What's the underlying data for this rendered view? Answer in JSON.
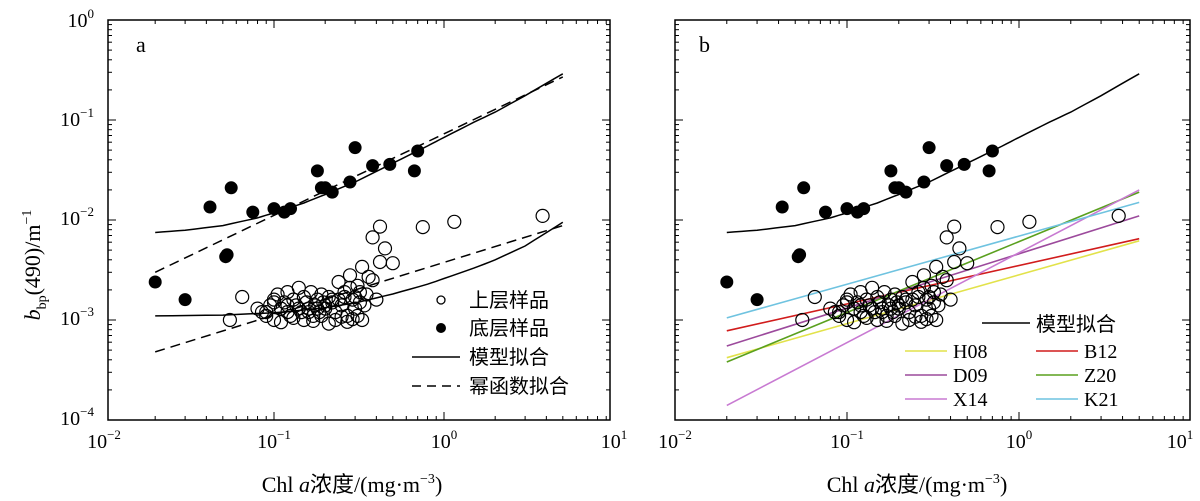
{
  "figure": {
    "ylabel": {
      "main": "b",
      "sub": "bp",
      "rest": "(490)/m",
      "sup": "−1"
    },
    "xlabel": {
      "prefix": "Chl ",
      "italic": "a",
      "suffix": "浓度/(mg·m",
      "sup": "−3",
      "close": ")"
    }
  },
  "chart_data": [
    {
      "panel": "a",
      "type": "scatter",
      "xscale": "log",
      "yscale": "log",
      "xlim": [
        0.01,
        10
      ],
      "ylim": [
        0.0001,
        1
      ],
      "xticks": [
        {
          "base": "10",
          "exp": "−2"
        },
        {
          "base": "10",
          "exp": "−1"
        },
        {
          "base": "10",
          "exp": "0"
        },
        {
          "base": "10",
          "exp": "1"
        }
      ],
      "yticks": [
        {
          "base": "10",
          "exp": "−4"
        },
        {
          "base": "10",
          "exp": "−3"
        },
        {
          "base": "10",
          "exp": "−2"
        },
        {
          "base": "10",
          "exp": "−1"
        },
        {
          "base": "10",
          "exp": "0"
        }
      ],
      "legend": {
        "placement": "bottom-right",
        "entries": [
          {
            "label": "上层样品",
            "marker": "open-circle"
          },
          {
            "label": "底层样品",
            "marker": "filled-circle"
          },
          {
            "label": "模型拟合",
            "line": "solid"
          },
          {
            "label": "幂函数拟合",
            "line": "dashed"
          }
        ]
      }
    },
    {
      "panel": "b",
      "type": "scatter",
      "xscale": "log",
      "yscale": "log",
      "xlim": [
        0.01,
        10
      ],
      "ylim": [
        0.0001,
        1
      ],
      "xticks": [
        {
          "base": "10",
          "exp": "−2"
        },
        {
          "base": "10",
          "exp": "−1"
        },
        {
          "base": "10",
          "exp": "0"
        },
        {
          "base": "10",
          "exp": "1"
        }
      ],
      "legend": {
        "placement": "bottom-right",
        "model_label": "模型拟合",
        "entries": [
          {
            "label": "H08",
            "color": "#e2e24a"
          },
          {
            "label": "B12",
            "color": "#d11c1c"
          },
          {
            "label": "D09",
            "color": "#9c4a9c"
          },
          {
            "label": "Z20",
            "color": "#5aa01e"
          },
          {
            "label": "X14",
            "color": "#c87ad2"
          },
          {
            "label": "K21",
            "color": "#6fc3e0"
          }
        ]
      },
      "lines": [
        {
          "name": "H08",
          "color": "#e2e24a",
          "x": [
            0.02,
            5
          ],
          "y": [
            0.00042,
            0.0062
          ]
        },
        {
          "name": "B12",
          "color": "#d11c1c",
          "x": [
            0.02,
            5
          ],
          "y": [
            0.00078,
            0.0065
          ]
        },
        {
          "name": "D09",
          "color": "#9c4a9c",
          "x": [
            0.02,
            5
          ],
          "y": [
            0.00055,
            0.011
          ]
        },
        {
          "name": "Z20",
          "color": "#5aa01e",
          "x": [
            0.02,
            5
          ],
          "y": [
            0.00038,
            0.019
          ]
        },
        {
          "name": "X14",
          "color": "#c87ad2",
          "x": [
            0.02,
            5
          ],
          "y": [
            0.00014,
            0.02
          ]
        },
        {
          "name": "K21",
          "color": "#6fc3e0",
          "x": [
            0.02,
            5
          ],
          "y": [
            0.00105,
            0.015
          ]
        }
      ]
    }
  ],
  "series": {
    "upper_samples": {
      "x": [
        0.065,
        0.08,
        0.085,
        0.09,
        0.095,
        0.1,
        0.1,
        0.105,
        0.11,
        0.115,
        0.12,
        0.12,
        0.125,
        0.13,
        0.135,
        0.14,
        0.145,
        0.15,
        0.155,
        0.16,
        0.165,
        0.17,
        0.175,
        0.18,
        0.185,
        0.19,
        0.195,
        0.2,
        0.21,
        0.22,
        0.23,
        0.24,
        0.25,
        0.26,
        0.27,
        0.28,
        0.29,
        0.3,
        0.31,
        0.32,
        0.33,
        0.35,
        0.36,
        0.38,
        0.4,
        0.42,
        0.45,
        0.5,
        0.11,
        0.13,
        0.15,
        0.17,
        0.19,
        0.21,
        0.23,
        0.25,
        0.27,
        0.29,
        0.31,
        0.33,
        0.09,
        0.1,
        0.12,
        0.14,
        0.16,
        0.18,
        0.2,
        0.22,
        0.24,
        0.26,
        0.28,
        0.3,
        0.32,
        0.34,
        0.38,
        0.42,
        0.75,
        1.15,
        3.8,
        0.055
      ],
      "y": [
        0.0017,
        0.0013,
        0.0012,
        0.0011,
        0.0014,
        0.0016,
        0.001,
        0.0018,
        0.0013,
        0.0015,
        0.0012,
        0.0019,
        0.0011,
        0.0016,
        0.0014,
        0.0021,
        0.0012,
        0.0017,
        0.0015,
        0.0013,
        0.0019,
        0.0011,
        0.0014,
        0.0016,
        0.0012,
        0.0018,
        0.0015,
        0.0013,
        0.0017,
        0.0016,
        0.0012,
        0.0024,
        0.0014,
        0.0019,
        0.0011,
        0.0028,
        0.0016,
        0.0013,
        0.0022,
        0.0015,
        0.0034,
        0.0018,
        0.0027,
        0.0025,
        0.0016,
        0.0038,
        0.0052,
        0.0037,
        0.00095,
        0.00105,
        0.001,
        0.00098,
        0.0011,
        0.00092,
        0.001,
        0.00108,
        0.00096,
        0.00102,
        0.0011,
        0.001,
        0.0012,
        0.0015,
        0.0014,
        0.0013,
        0.0012,
        0.0013,
        0.0014,
        0.0015,
        0.0016,
        0.0017,
        0.0021,
        0.0017,
        0.0019,
        0.0014,
        0.0067,
        0.0086,
        0.0085,
        0.0096,
        0.011,
        0.001
      ]
    },
    "bottom_samples": {
      "x": [
        0.02,
        0.03,
        0.042,
        0.052,
        0.053,
        0.056,
        0.075,
        0.1,
        0.115,
        0.125,
        0.18,
        0.19,
        0.2,
        0.22,
        0.28,
        0.3,
        0.38,
        0.48,
        0.67,
        0.7
      ],
      "y": [
        0.0024,
        0.0016,
        0.0135,
        0.0043,
        0.0045,
        0.021,
        0.012,
        0.013,
        0.012,
        0.013,
        0.031,
        0.021,
        0.021,
        0.019,
        0.024,
        0.053,
        0.035,
        0.036,
        0.031,
        0.049
      ]
    },
    "model_fit_bottom": {
      "x": [
        0.02,
        0.03,
        0.05,
        0.08,
        0.1,
        0.15,
        0.2,
        0.3,
        0.5,
        0.8,
        1,
        1.5,
        2,
        3,
        5
      ],
      "y": [
        0.0075,
        0.0079,
        0.0088,
        0.0105,
        0.0118,
        0.0148,
        0.018,
        0.024,
        0.037,
        0.055,
        0.067,
        0.095,
        0.12,
        0.175,
        0.29
      ]
    },
    "model_fit_upper": {
      "x": [
        0.02,
        0.05,
        0.1,
        0.15,
        0.2,
        0.3,
        0.5,
        0.8,
        1,
        1.5,
        2,
        3,
        5
      ],
      "y": [
        0.0011,
        0.00112,
        0.00118,
        0.00126,
        0.00133,
        0.00148,
        0.00182,
        0.00228,
        0.0026,
        0.0033,
        0.004,
        0.0055,
        0.0095
      ]
    },
    "power_fit_bottom": {
      "x": [
        0.02,
        5
      ],
      "y": [
        0.003,
        0.27
      ]
    },
    "power_fit_upper": {
      "x": [
        0.02,
        5
      ],
      "y": [
        0.00048,
        0.0088
      ]
    }
  }
}
